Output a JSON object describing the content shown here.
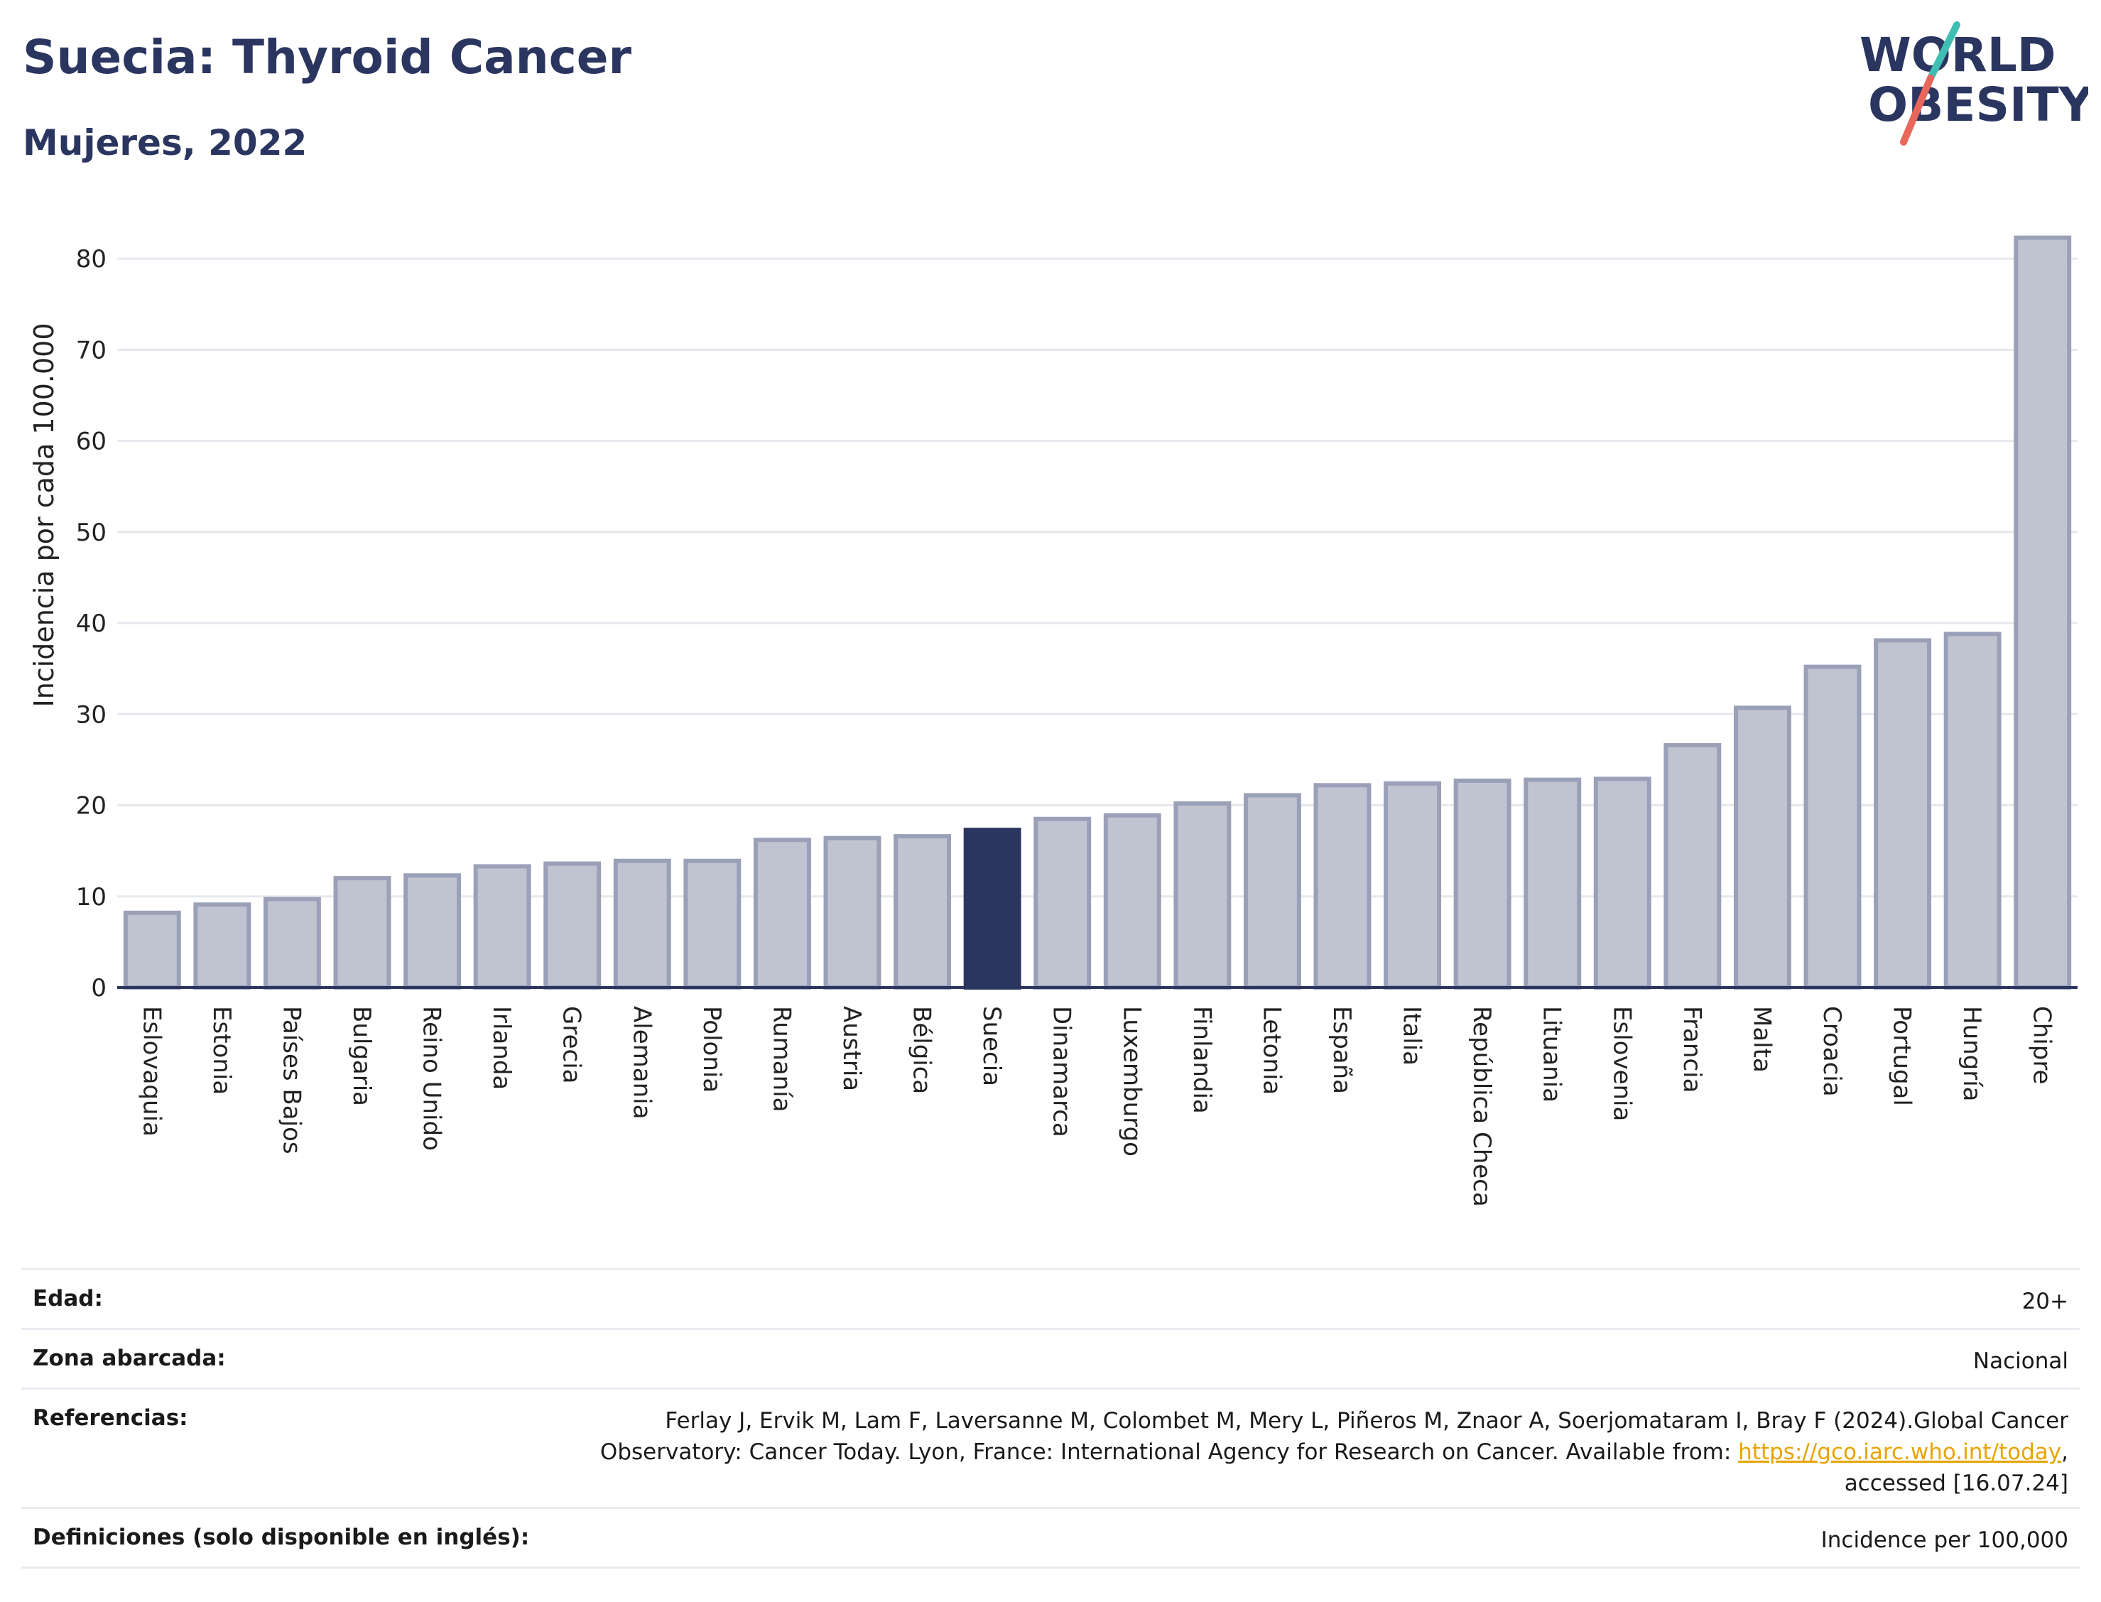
{
  "header": {
    "title": "Suecia: Thyroid Cancer",
    "subtitle": "Mujeres, 2022",
    "logo_line1": "WORLD",
    "logo_line2": "OBESITY"
  },
  "chart_data": {
    "type": "bar",
    "ylabel": "Incidencia por cada 100.000",
    "xlabel": "",
    "ylim": [
      0,
      85
    ],
    "yticks": [
      0,
      10,
      20,
      30,
      40,
      50,
      60,
      70,
      80
    ],
    "grid": true,
    "highlight": "Suecia",
    "categories": [
      "Eslovaquia",
      "Estonia",
      "Países Bajos",
      "Bulgaria",
      "Reino Unido",
      "Irlanda",
      "Grecia",
      "Alemania",
      "Polonia",
      "Rumanía",
      "Austria",
      "Bélgica",
      "Suecia",
      "Dinamarca",
      "Luxemburgo",
      "Finlandia",
      "Letonia",
      "España",
      "Italia",
      "República Checa",
      "Lituania",
      "Eslovenia",
      "Francia",
      "Malta",
      "Croacia",
      "Portugal",
      "Hungría",
      "Chipre"
    ],
    "values": [
      8.2,
      9.1,
      9.7,
      12.0,
      12.3,
      13.3,
      13.6,
      13.9,
      13.9,
      16.2,
      16.4,
      16.6,
      17.3,
      18.5,
      18.9,
      20.2,
      21.1,
      22.2,
      22.4,
      22.7,
      22.8,
      22.9,
      26.6,
      30.7,
      35.2,
      38.1,
      38.8,
      82.3
    ],
    "colors": {
      "bar": "#c0c3d0",
      "bar_border": "#9aa0b8",
      "highlight": "#2b3660"
    }
  },
  "meta": {
    "rows": [
      {
        "key": "Edad:",
        "value": "20+"
      },
      {
        "key": "Zona abarcada:",
        "value": "Nacional"
      },
      {
        "key": "Referencias:",
        "value_pre": "Ferlay J, Ervik M, Lam F, Laversanne M, Colombet M, Mery L, Piñeros M, Znaor A, Soerjomataram I, Bray F (2024).Global Cancer Observatory: Cancer Today. Lyon, France: International Agency for Research on Cancer. Available from: ",
        "link": "https://gco.iarc.who.int/today",
        "value_post": ", accessed [16.07.24]"
      },
      {
        "key": "Definiciones (solo disponible en inglés):",
        "value": "Incidence per 100,000"
      }
    ]
  }
}
